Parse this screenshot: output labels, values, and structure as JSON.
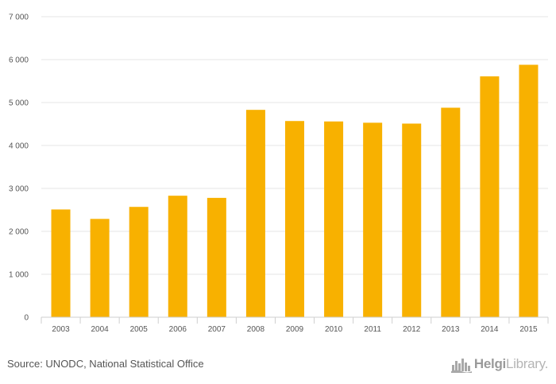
{
  "chart_data": {
    "type": "bar",
    "categories": [
      "2003",
      "2004",
      "2005",
      "2006",
      "2007",
      "2008",
      "2009",
      "2010",
      "2011",
      "2012",
      "2013",
      "2014",
      "2015"
    ],
    "values": [
      2510,
      2290,
      2570,
      2830,
      2780,
      4830,
      4570,
      4560,
      4530,
      4510,
      4880,
      5610,
      5880
    ],
    "title": "",
    "xlabel": "",
    "ylabel": "",
    "ylim": [
      0,
      7000
    ],
    "yticks": [
      0,
      1000,
      2000,
      3000,
      4000,
      5000,
      6000,
      7000
    ],
    "ytick_labels": [
      "0",
      "1 000",
      "2 000",
      "3 000",
      "4 000",
      "5 000",
      "6 000",
      "7 000"
    ],
    "grid": true,
    "bar_color": "#F8B100",
    "grid_color": "#E6E6E6"
  },
  "footer": {
    "source": "Source: UNODC, National Statistical Office",
    "logo_bold": "Helgi",
    "logo_light": "Library."
  },
  "colors": {
    "text": "#555555",
    "logo": "#9A9A9A"
  }
}
